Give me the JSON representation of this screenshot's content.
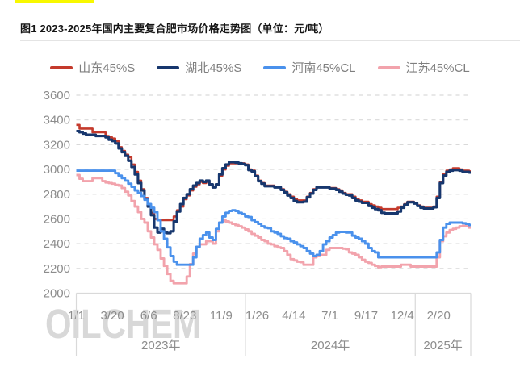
{
  "page": {
    "top_highlight_color": "#f8f800"
  },
  "header": {
    "title": "图1  2023-2025年国内主要复合肥市场价格走势图（单位：元/吨）"
  },
  "watermark": "OILCHEM",
  "chart_data": {
    "type": "line",
    "title": "2023-2025年国内主要复合肥市场价格走势图",
    "unit": "元/吨",
    "grid": "horizontal-dashed",
    "legend_position": "top",
    "ylim": [
      2000,
      3600
    ],
    "y_ticks": [
      2000,
      2200,
      2400,
      2600,
      2800,
      3000,
      3200,
      3400,
      3600
    ],
    "x_unit": "weeks since 2023-01-01",
    "weeks_total": 121.5,
    "x_ticks": [
      {
        "label": "1/1",
        "week": 0
      },
      {
        "label": "3/20",
        "week": 11.1
      },
      {
        "label": "6/6",
        "week": 22.3
      },
      {
        "label": "8/23",
        "week": 33.4
      },
      {
        "label": "11/9",
        "week": 44.6
      },
      {
        "label": "1/26",
        "week": 55.7
      },
      {
        "label": "4/14",
        "week": 67.0
      },
      {
        "label": "7/1",
        "week": 78.1
      },
      {
        "label": "9/17",
        "week": 89.3
      },
      {
        "label": "12/4",
        "week": 100.4
      },
      {
        "label": "2/20",
        "week": 111.6
      }
    ],
    "year_bands": [
      {
        "label": "2023年",
        "from_week": 0,
        "to_week": 52.1
      },
      {
        "label": "2024年",
        "from_week": 52.1,
        "to_week": 104.4
      },
      {
        "label": "2025年",
        "from_week": 104.4,
        "to_week": 121.5
      }
    ],
    "axis_color": "#d9d9d9",
    "tick_label_color": "#8c8c8c",
    "draw_order": [
      0,
      1,
      3,
      2
    ],
    "series": [
      {
        "name": "山东45%S",
        "color": "#c43a2c",
        "line_width": 2.6,
        "weekly_values": [
          3360,
          3330,
          3330,
          3330,
          3330,
          3300,
          3300,
          3300,
          3300,
          3270,
          3260,
          3250,
          3230,
          3180,
          3150,
          3120,
          3100,
          3040,
          2980,
          2910,
          2840,
          2770,
          2710,
          2650,
          2600,
          2590,
          2590,
          2590,
          2590,
          2590,
          2620,
          2670,
          2700,
          2760,
          2790,
          2830,
          2860,
          2880,
          2900,
          2890,
          2900,
          2880,
          2860,
          2880,
          2950,
          3000,
          3030,
          3050,
          3050,
          3050,
          3050,
          3050,
          3040,
          3000,
          2990,
          2950,
          2910,
          2890,
          2870,
          2870,
          2870,
          2860,
          2860,
          2840,
          2820,
          2800,
          2780,
          2760,
          2750,
          2750,
          2750,
          2780,
          2810,
          2840,
          2860,
          2860,
          2860,
          2860,
          2850,
          2850,
          2840,
          2830,
          2810,
          2800,
          2800,
          2780,
          2760,
          2750,
          2740,
          2740,
          2720,
          2710,
          2700,
          2690,
          2680,
          2680,
          2680,
          2680,
          2680,
          2690,
          2700,
          2720,
          2740,
          2740,
          2730,
          2710,
          2700,
          2690,
          2690,
          2690,
          2700,
          2780,
          2900,
          2960,
          2990,
          3000,
          3010,
          3010,
          3000,
          2990,
          2990,
          2985
        ]
      },
      {
        "name": "湖北45%S",
        "color": "#17376e",
        "line_width": 3.1,
        "weekly_values": [
          3310,
          3300,
          3290,
          3280,
          3280,
          3280,
          3270,
          3270,
          3270,
          3260,
          3240,
          3230,
          3210,
          3170,
          3140,
          3110,
          3070,
          3020,
          2960,
          2890,
          2830,
          2760,
          2700,
          2630,
          2530,
          2490,
          2520,
          2490,
          2485,
          2500,
          2580,
          2660,
          2720,
          2770,
          2800,
          2840,
          2870,
          2890,
          2910,
          2900,
          2910,
          2880,
          2855,
          2880,
          2960,
          3010,
          3040,
          3060,
          3060,
          3055,
          3050,
          3045,
          3035,
          2995,
          2985,
          2945,
          2905,
          2885,
          2865,
          2865,
          2865,
          2855,
          2855,
          2835,
          2815,
          2790,
          2770,
          2745,
          2735,
          2735,
          2740,
          2775,
          2805,
          2835,
          2855,
          2855,
          2855,
          2855,
          2845,
          2845,
          2835,
          2820,
          2805,
          2795,
          2790,
          2770,
          2750,
          2740,
          2730,
          2730,
          2705,
          2690,
          2680,
          2670,
          2650,
          2645,
          2645,
          2645,
          2645,
          2660,
          2690,
          2715,
          2735,
          2735,
          2725,
          2705,
          2690,
          2685,
          2685,
          2685,
          2695,
          2770,
          2890,
          2950,
          2980,
          2990,
          2995,
          2995,
          2990,
          2980,
          2980,
          2975
        ]
      },
      {
        "name": "河南45%CL",
        "color": "#4a91ec",
        "line_width": 2.9,
        "weekly_values": [
          2990,
          2990,
          2990,
          2990,
          2990,
          2990,
          2990,
          2990,
          2990,
          2990,
          2990,
          2990,
          2970,
          2950,
          2930,
          2910,
          2885,
          2860,
          2830,
          2810,
          2785,
          2755,
          2720,
          2690,
          2655,
          2590,
          2500,
          2440,
          2370,
          2300,
          2255,
          2230,
          2230,
          2230,
          2230,
          2230,
          2290,
          2375,
          2440,
          2470,
          2490,
          2450,
          2430,
          2520,
          2570,
          2620,
          2650,
          2665,
          2670,
          2665,
          2650,
          2640,
          2620,
          2615,
          2590,
          2575,
          2560,
          2540,
          2530,
          2525,
          2500,
          2490,
          2480,
          2460,
          2445,
          2440,
          2420,
          2410,
          2395,
          2380,
          2365,
          2340,
          2320,
          2300,
          2310,
          2340,
          2395,
          2420,
          2450,
          2470,
          2490,
          2495,
          2495,
          2490,
          2490,
          2465,
          2450,
          2440,
          2420,
          2400,
          2365,
          2340,
          2330,
          2290,
          2290,
          2290,
          2290,
          2290,
          2290,
          2290,
          2290,
          2290,
          2290,
          2290,
          2290,
          2290,
          2290,
          2290,
          2290,
          2290,
          2290,
          2330,
          2430,
          2530,
          2560,
          2570,
          2570,
          2570,
          2570,
          2565,
          2560,
          2550
        ]
      },
      {
        "name": "江苏45%CL",
        "color": "#f2a3ac",
        "line_width": 2.9,
        "weekly_values": [
          2955,
          2925,
          2905,
          2905,
          2905,
          2930,
          2930,
          2930,
          2905,
          2895,
          2890,
          2885,
          2875,
          2870,
          2850,
          2820,
          2790,
          2745,
          2700,
          2655,
          2600,
          2570,
          2500,
          2450,
          2395,
          2350,
          2280,
          2220,
          2155,
          2100,
          2080,
          2080,
          2080,
          2080,
          2135,
          2235,
          2320,
          2375,
          2395,
          2395,
          2420,
          2420,
          2400,
          2500,
          2570,
          2590,
          2580,
          2570,
          2560,
          2550,
          2540,
          2530,
          2515,
          2500,
          2480,
          2465,
          2450,
          2430,
          2420,
          2400,
          2395,
          2380,
          2370,
          2365,
          2340,
          2310,
          2275,
          2265,
          2255,
          2250,
          2230,
          2230,
          2230,
          2290,
          2300,
          2310,
          2310,
          2350,
          2365,
          2365,
          2365,
          2365,
          2360,
          2355,
          2330,
          2320,
          2310,
          2290,
          2270,
          2255,
          2245,
          2230,
          2220,
          2210,
          2215,
          2215,
          2215,
          2215,
          2215,
          2215,
          2230,
          2230,
          2230,
          2215,
          2215,
          2215,
          2215,
          2215,
          2215,
          2215,
          2215,
          2290,
          2420,
          2460,
          2490,
          2510,
          2520,
          2530,
          2540,
          2545,
          2540,
          2530
        ]
      }
    ]
  }
}
